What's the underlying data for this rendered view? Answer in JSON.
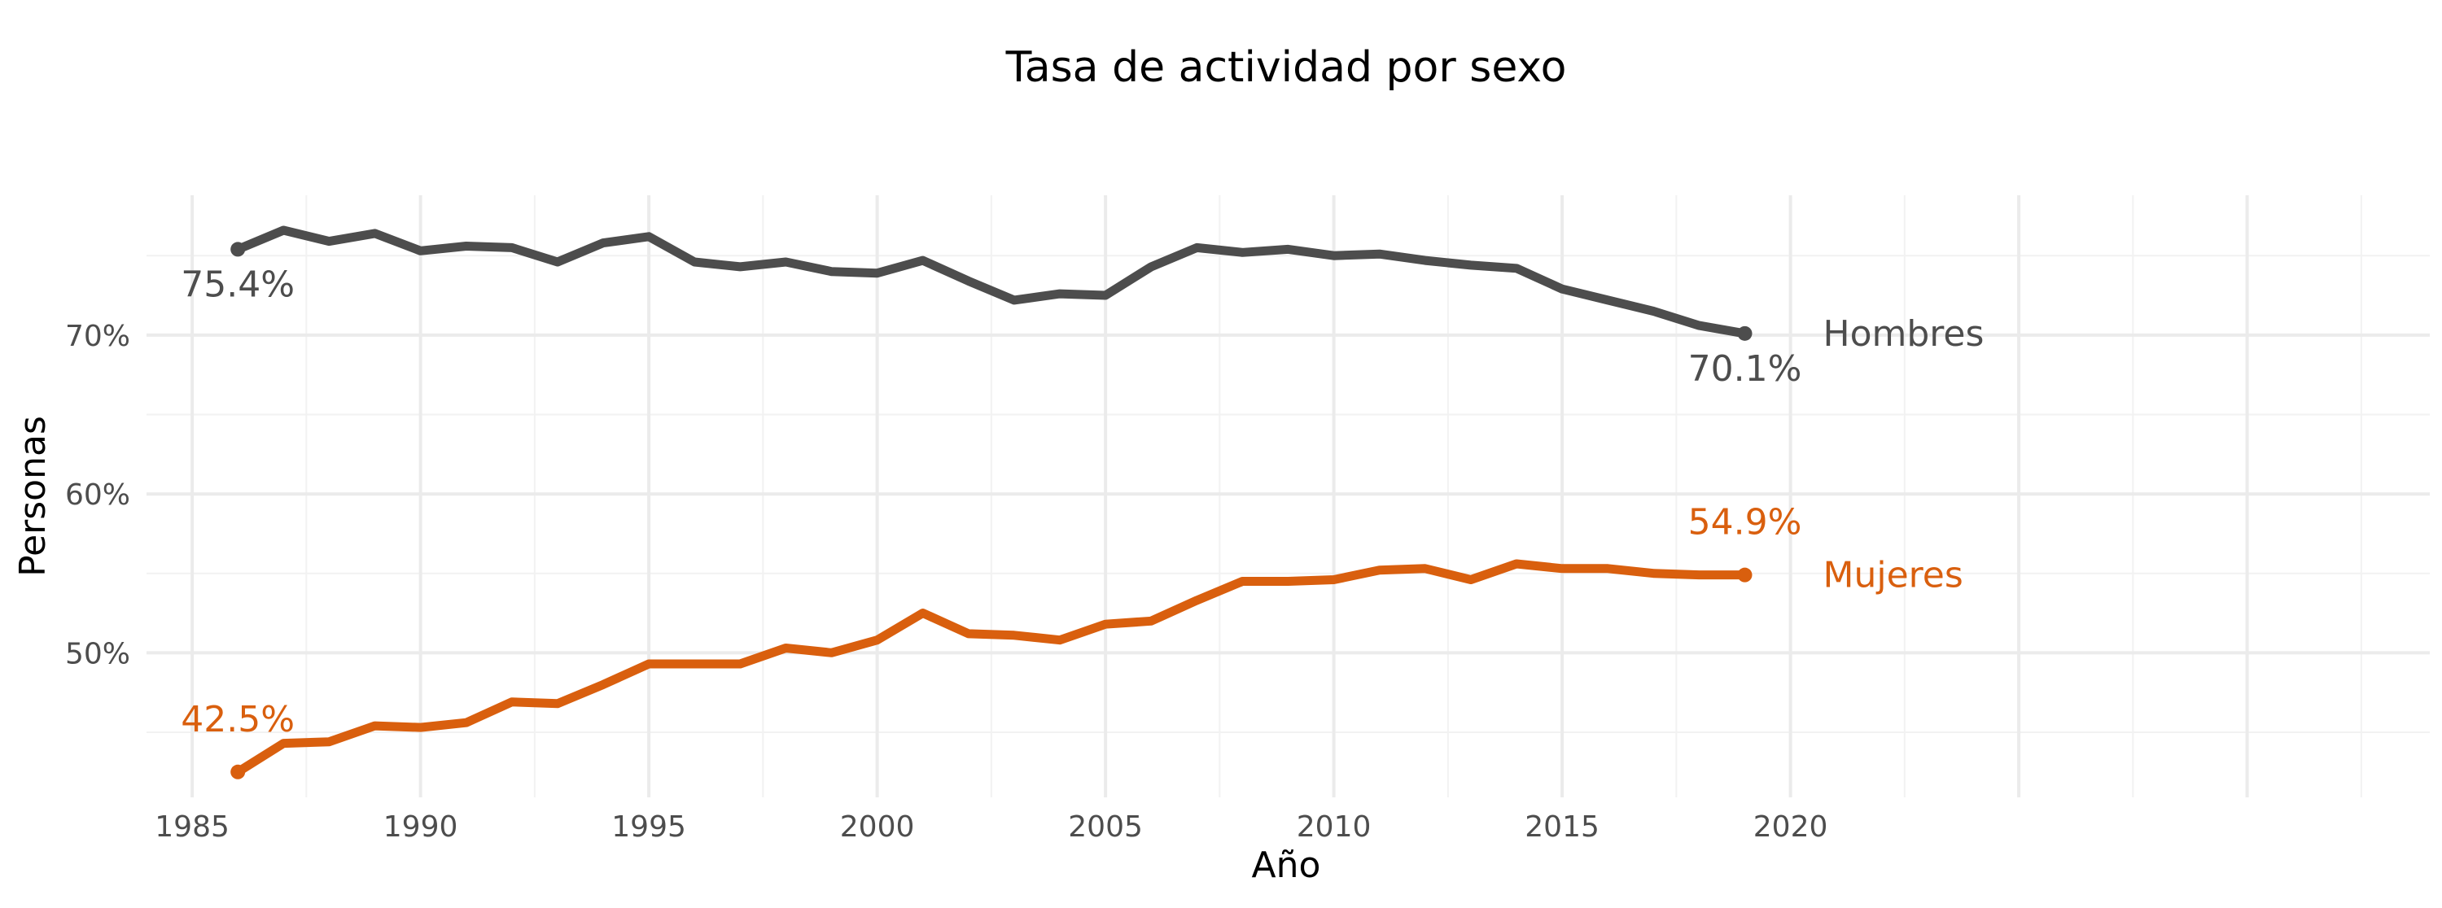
{
  "chart_data": {
    "type": "line",
    "title": "Tasa de actividad por sexo",
    "xlabel": "Año",
    "ylabel": "Personas",
    "xlim": [
      1984,
      2034
    ],
    "ylim": [
      40.9,
      78.8
    ],
    "x_ticks": [
      1985,
      1990,
      1995,
      2000,
      2005,
      2010,
      2015,
      2020
    ],
    "x_tick_labels": [
      "1985",
      "1990",
      "1995",
      "2000",
      "2005",
      "2010",
      "2015",
      "2020"
    ],
    "y_ticks": [
      50,
      60,
      70
    ],
    "y_tick_labels": [
      "50%",
      "60%",
      "70%"
    ],
    "grid": true,
    "legend": "none (direct labels at line ends)",
    "series": [
      {
        "name": "Hombres",
        "color": "#4d4d4d",
        "x": [
          1986,
          1987,
          1988,
          1989,
          1990,
          1991,
          1992,
          1993,
          1994,
          1995,
          1996,
          1997,
          1998,
          1999,
          2000,
          2001,
          2002,
          2003,
          2004,
          2005,
          2006,
          2007,
          2008,
          2009,
          2010,
          2011,
          2012,
          2013,
          2014,
          2015,
          2016,
          2017,
          2018,
          2019
        ],
        "values": [
          75.4,
          76.6,
          75.9,
          76.4,
          75.3,
          75.6,
          75.5,
          74.6,
          75.8,
          76.2,
          74.6,
          74.3,
          74.6,
          74.0,
          73.9,
          74.7,
          73.4,
          72.2,
          72.6,
          72.5,
          74.3,
          75.5,
          75.2,
          75.4,
          75.0,
          75.1,
          74.7,
          74.4,
          74.2,
          72.9,
          72.2,
          71.5,
          70.6,
          70.1
        ],
        "start_label": "75.4%",
        "end_label": "70.1%"
      },
      {
        "name": "Mujeres",
        "color": "#d95f0e",
        "x": [
          1986,
          1987,
          1988,
          1989,
          1990,
          1991,
          1992,
          1993,
          1994,
          1995,
          1996,
          1997,
          1998,
          1999,
          2000,
          2001,
          2002,
          2003,
          2004,
          2005,
          2006,
          2007,
          2008,
          2009,
          2010,
          2011,
          2012,
          2013,
          2014,
          2015,
          2016,
          2017,
          2018,
          2019
        ],
        "values": [
          42.5,
          44.3,
          44.4,
          45.4,
          45.3,
          45.6,
          46.9,
          46.8,
          48.0,
          49.3,
          49.3,
          49.3,
          50.3,
          50.0,
          50.8,
          52.5,
          51.2,
          51.1,
          50.8,
          51.8,
          52.0,
          53.3,
          54.5,
          54.5,
          54.6,
          55.2,
          55.3,
          54.6,
          55.6,
          55.3,
          55.3,
          55.0,
          54.9,
          54.9
        ],
        "start_label": "42.5%",
        "end_label": "54.9%"
      }
    ]
  }
}
